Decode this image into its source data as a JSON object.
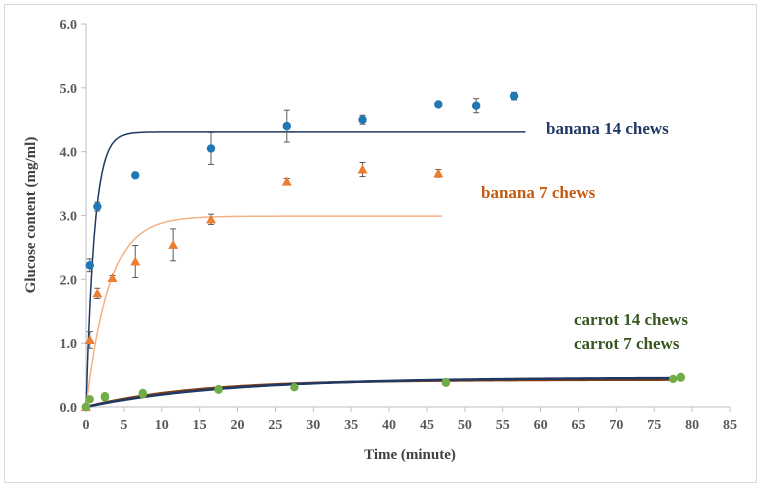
{
  "chart_data": {
    "type": "scatter",
    "title": "",
    "xlabel": "Time (minute)",
    "ylabel": "Glucose content (mg/ml)",
    "xlim": [
      0,
      85
    ],
    "ylim": [
      0,
      6
    ],
    "x_ticks": [
      0,
      5,
      10,
      15,
      20,
      25,
      30,
      35,
      40,
      45,
      50,
      55,
      60,
      65,
      70,
      75,
      80,
      85
    ],
    "y_ticks": [
      "0.0",
      "1.0",
      "2.0",
      "3.0",
      "4.0",
      "5.0",
      "6.0"
    ],
    "grid": false,
    "series": [
      {
        "name": "banana 14 chews",
        "color": "#1f77b4",
        "marker": "circle",
        "points": [
          {
            "x": 0,
            "y": 0,
            "err": 0
          },
          {
            "x": 0.5,
            "y": 2.22,
            "err": 0.1
          },
          {
            "x": 1.5,
            "y": 3.14,
            "err": 0.07
          },
          {
            "x": 6.5,
            "y": 3.63,
            "err": 0.04
          },
          {
            "x": 16.5,
            "y": 4.05,
            "err": 0.25
          },
          {
            "x": 26.5,
            "y": 4.4,
            "err": 0.25
          },
          {
            "x": 36.5,
            "y": 4.5,
            "err": 0.07
          },
          {
            "x": 46.5,
            "y": 4.74,
            "err": 0.03
          },
          {
            "x": 51.5,
            "y": 4.72,
            "err": 0.11
          },
          {
            "x": 56.5,
            "y": 4.87,
            "err": 0.06
          }
        ]
      },
      {
        "name": "banana 7 chews",
        "color": "#ed7d31",
        "marker": "triangle",
        "points": [
          {
            "x": 0,
            "y": 0,
            "err": 0
          },
          {
            "x": 0.5,
            "y": 1.05,
            "err": 0.13
          },
          {
            "x": 1.5,
            "y": 1.78,
            "err": 0.08
          },
          {
            "x": 3.5,
            "y": 2.02,
            "err": 0.04
          },
          {
            "x": 6.5,
            "y": 2.28,
            "err": 0.25
          },
          {
            "x": 11.5,
            "y": 2.54,
            "err": 0.25
          },
          {
            "x": 16.5,
            "y": 2.94,
            "err": 0.08
          },
          {
            "x": 26.5,
            "y": 3.53,
            "err": 0.05
          },
          {
            "x": 36.5,
            "y": 3.72,
            "err": 0.11
          },
          {
            "x": 46.5,
            "y": 3.66,
            "err": 0.06
          }
        ]
      },
      {
        "name": "carrot 14 chews",
        "color": "#70ad47",
        "marker": "circle",
        "points": [
          {
            "x": 0,
            "y": 0
          },
          {
            "x": 0.5,
            "y": 0.12
          },
          {
            "x": 2.5,
            "y": 0.17
          },
          {
            "x": 7.5,
            "y": 0.2
          },
          {
            "x": 17.5,
            "y": 0.27
          },
          {
            "x": 27.5,
            "y": 0.31
          },
          {
            "x": 47.5,
            "y": 0.38
          },
          {
            "x": 77.5,
            "y": 0.44
          },
          {
            "x": 78.5,
            "y": 0.47
          }
        ]
      },
      {
        "name": "carrot 7 chews",
        "color": "#70ad47",
        "marker": "circle",
        "points": [
          {
            "x": 0,
            "y": 0
          },
          {
            "x": 2.5,
            "y": 0.15
          },
          {
            "x": 7.5,
            "y": 0.22
          },
          {
            "x": 17.5,
            "y": 0.28
          },
          {
            "x": 47.5,
            "y": 0.39
          },
          {
            "x": 78.5,
            "y": 0.46
          }
        ]
      }
    ],
    "fits": [
      {
        "name": "banana 14 chews fit",
        "color": "#1f3864",
        "ymax": 4.31,
        "k": 0.9,
        "x_end": 58
      },
      {
        "name": "banana 7 chews fit",
        "color": "#f4b183",
        "ymax": 2.99,
        "k": 0.33,
        "x_end": 47
      },
      {
        "name": "carrot 7 chews fit",
        "color": "#843c0c",
        "ymax": 0.43,
        "k": 0.07,
        "x_end": 78
      },
      {
        "name": "carrot 14 chews fit",
        "color": "#1f3864",
        "ymax": 0.46,
        "k": 0.055,
        "x_end": 78
      }
    ],
    "labels": {
      "banana14": {
        "text": "banana 14 chews",
        "color": "#1f3864"
      },
      "banana7": {
        "text": "banana 7 chews",
        "color": "#c55a11"
      },
      "carrot14": {
        "text": "carrot 14 chews",
        "color": "#385723"
      },
      "carrot7": {
        "text": "carrot 7 chews",
        "color": "#385723"
      }
    }
  }
}
